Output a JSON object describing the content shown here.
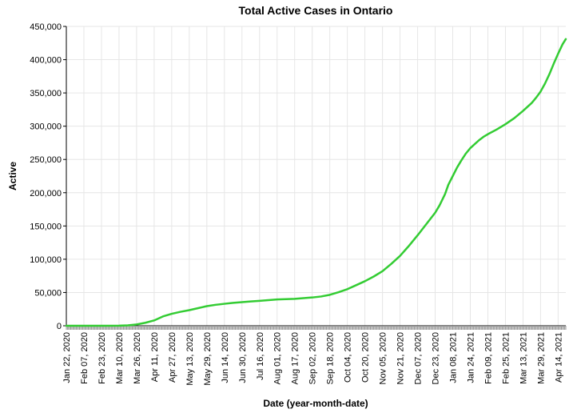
{
  "chart_data": {
    "type": "line",
    "title": "Total Active Cases in Ontario",
    "xlabel": "Date (year-month-date)",
    "ylabel": "Active",
    "ylim": [
      0,
      450000
    ],
    "yticks": [
      0,
      50000,
      100000,
      150000,
      200000,
      250000,
      300000,
      350000,
      400000,
      450000
    ],
    "ytick_labels": [
      "0",
      "50,000",
      "100,000",
      "150,000",
      "200,000",
      "250,000",
      "300,000",
      "350,000",
      "400,000",
      "450,000"
    ],
    "xlim": [
      "2020-01-22",
      "2021-04-21"
    ],
    "xticks": [
      "2020-01-22",
      "2020-02-07",
      "2020-02-23",
      "2020-03-10",
      "2020-03-26",
      "2020-04-11",
      "2020-04-27",
      "2020-05-13",
      "2020-05-29",
      "2020-06-14",
      "2020-06-30",
      "2020-07-16",
      "2020-08-01",
      "2020-08-17",
      "2020-09-02",
      "2020-09-18",
      "2020-10-04",
      "2020-10-20",
      "2020-11-05",
      "2020-11-21",
      "2020-12-07",
      "2020-12-23",
      "2021-01-08",
      "2021-01-24",
      "2021-02-09",
      "2021-02-25",
      "2021-03-13",
      "2021-03-29",
      "2021-04-14"
    ],
    "xtick_labels": [
      "Jan 22, 2020",
      "Feb 07, 2020",
      "Feb 23, 2020",
      "Mar 10, 2020",
      "Mar 26, 2020",
      "Apr 11, 2020",
      "Apr 27, 2020",
      "May 13, 2020",
      "May 29, 2020",
      "Jun 14, 2020",
      "Jun 30, 2020",
      "Jul 16, 2020",
      "Aug 01, 2020",
      "Aug 17, 2020",
      "Sep 02, 2020",
      "Sep 18, 2020",
      "Oct 04, 2020",
      "Oct 20, 2020",
      "Nov 05, 2020",
      "Nov 21, 2020",
      "Dec 07, 2020",
      "Dec 23, 2020",
      "Jan 08, 2021",
      "Jan 24, 2021",
      "Feb 09, 2021",
      "Feb 25, 2021",
      "Mar 13, 2021",
      "Mar 29, 2021",
      "Apr 14, 2021"
    ],
    "grid": true,
    "line_color": "#33cc33",
    "series": [
      {
        "x": [
          "2020-01-22",
          "2020-02-07",
          "2020-02-23",
          "2020-03-10",
          "2020-03-18",
          "2020-03-26",
          "2020-04-03",
          "2020-04-11",
          "2020-04-19",
          "2020-04-27",
          "2020-05-05",
          "2020-05-13",
          "2020-05-21",
          "2020-05-29",
          "2020-06-06",
          "2020-06-14",
          "2020-06-22",
          "2020-06-30",
          "2020-07-08",
          "2020-07-16",
          "2020-07-24",
          "2020-08-01",
          "2020-08-09",
          "2020-08-17",
          "2020-08-25",
          "2020-09-02",
          "2020-09-10",
          "2020-09-18",
          "2020-09-26",
          "2020-10-04",
          "2020-10-12",
          "2020-10-20",
          "2020-10-28",
          "2020-11-05",
          "2020-11-13",
          "2020-11-21",
          "2020-11-29",
          "2020-12-07",
          "2020-12-15",
          "2020-12-23",
          "2020-12-27",
          "2021-01-01",
          "2021-01-04",
          "2021-01-08",
          "2021-01-12",
          "2021-01-16",
          "2021-01-20",
          "2021-01-24",
          "2021-01-28",
          "2021-02-01",
          "2021-02-05",
          "2021-02-09",
          "2021-02-17",
          "2021-02-25",
          "2021-03-05",
          "2021-03-13",
          "2021-03-21",
          "2021-03-25",
          "2021-03-29",
          "2021-04-02",
          "2021-04-06",
          "2021-04-10",
          "2021-04-14",
          "2021-04-18",
          "2021-04-21"
        ],
        "y": [
          0,
          0,
          0,
          100,
          600,
          2000,
          4500,
          8000,
          14000,
          18000,
          21000,
          23500,
          26500,
          29500,
          31500,
          33000,
          34500,
          35500,
          36500,
          37500,
          38500,
          39500,
          40000,
          40500,
          41500,
          42500,
          44000,
          46500,
          50500,
          55000,
          61000,
          67000,
          74000,
          82000,
          93000,
          105000,
          120000,
          136000,
          153000,
          170000,
          181000,
          198000,
          212000,
          225000,
          238000,
          249000,
          259000,
          267000,
          273000,
          279000,
          284000,
          288000,
          295000,
          303000,
          312000,
          323000,
          335000,
          343000,
          352000,
          364000,
          378000,
          394000,
          409000,
          423000,
          431000
        ]
      }
    ]
  }
}
